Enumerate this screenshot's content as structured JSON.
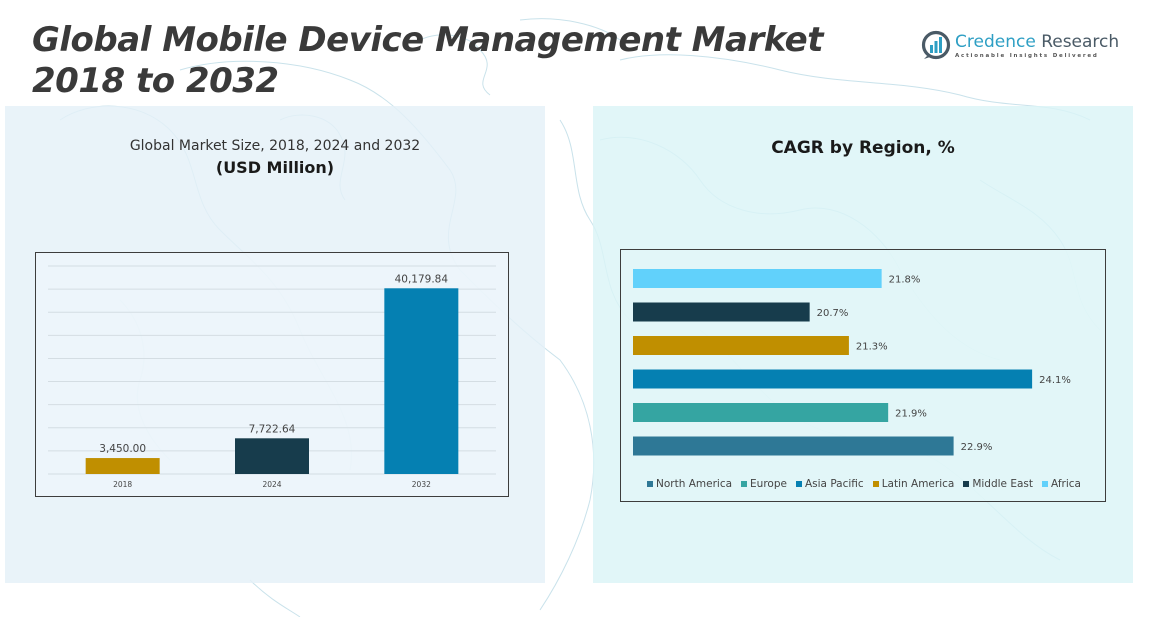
{
  "header": {
    "title_line1": "Global Mobile Device Management Market",
    "title_line2": "2018 to 2032"
  },
  "logo": {
    "icon": "bar-chart-logo-icon",
    "name_part1": "Credence",
    "name_part2": "Research",
    "tagline": "Actionable Insights Delivered",
    "colors": {
      "primary": "#2e9fc4",
      "secondary": "#4a5a66"
    }
  },
  "left_panel": {
    "subtitle": "Global Market Size, 2018, 2024 and 2032",
    "unit": "(USD Million)"
  },
  "right_panel": {
    "title": "CAGR by Region, %"
  },
  "chart_data": [
    {
      "type": "bar",
      "title": "Global Market Size, 2018, 2024 and 2032",
      "subtitle": "(USD Million)",
      "xlabel": "",
      "ylabel": "",
      "categories": [
        "2018",
        "2024",
        "2032"
      ],
      "values": [
        3450.0,
        7722.64,
        40179.84
      ],
      "value_labels": [
        "3,450.00",
        "7,722.64",
        "40,179.84"
      ],
      "colors": [
        "#c08f00",
        "#173c4c",
        "#0580b2"
      ],
      "ylim": [
        0,
        45000
      ],
      "grid_step": 5000,
      "grid": true,
      "legend": "none"
    },
    {
      "type": "bar",
      "orientation": "horizontal",
      "title": "CAGR by Region, %",
      "categories": [
        "Africa",
        "Middle East",
        "Latin America",
        "Asia Pacific",
        "Europe",
        "North America"
      ],
      "values": [
        21.8,
        20.7,
        21.3,
        24.1,
        21.9,
        22.9
      ],
      "value_labels": [
        "21.8%",
        "20.7%",
        "21.3%",
        "24.1%",
        "21.9%",
        "22.9%"
      ],
      "colors": [
        "#61d1fb",
        "#173c4c",
        "#c08f00",
        "#0580b2",
        "#35a5a2",
        "#2e7896"
      ],
      "xlim": [
        18,
        25
      ],
      "grid": false,
      "legend": "bottom",
      "legend_entries": [
        {
          "label": "North America",
          "color": "#2e7896"
        },
        {
          "label": "Europe",
          "color": "#35a5a2"
        },
        {
          "label": "Asia Pacific",
          "color": "#0580b2"
        },
        {
          "label": "Latin America",
          "color": "#c08f00"
        },
        {
          "label": "Middle East",
          "color": "#173c4c"
        },
        {
          "label": "Africa",
          "color": "#61d1fb"
        }
      ]
    }
  ]
}
